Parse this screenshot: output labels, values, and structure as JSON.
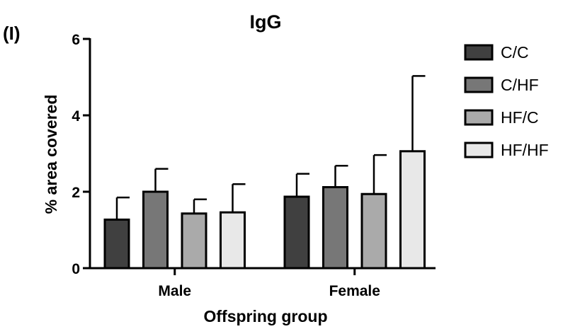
{
  "panel_label": "(I)",
  "chart_data": {
    "type": "bar",
    "title": "IgG",
    "xlabel": "Offspring group",
    "ylabel": "% area covered",
    "ylim": [
      0,
      6
    ],
    "yticks": [
      0,
      2,
      4,
      6
    ],
    "categories": [
      "Male",
      "Female"
    ],
    "grid": false,
    "legend_position": "right",
    "series": [
      {
        "name": "C/C",
        "color": "#404040",
        "values": [
          1.27,
          1.87
        ],
        "errors": [
          0.58,
          0.6
        ]
      },
      {
        "name": "C/HF",
        "color": "#777777",
        "values": [
          2.0,
          2.12
        ],
        "errors": [
          0.6,
          0.56
        ]
      },
      {
        "name": "HF/C",
        "color": "#aaaaaa",
        "values": [
          1.43,
          1.94
        ],
        "errors": [
          0.37,
          1.02
        ]
      },
      {
        "name": "HF/HF",
        "color": "#e8e8e8",
        "values": [
          1.46,
          3.06
        ],
        "errors": [
          0.74,
          1.97
        ]
      }
    ]
  }
}
